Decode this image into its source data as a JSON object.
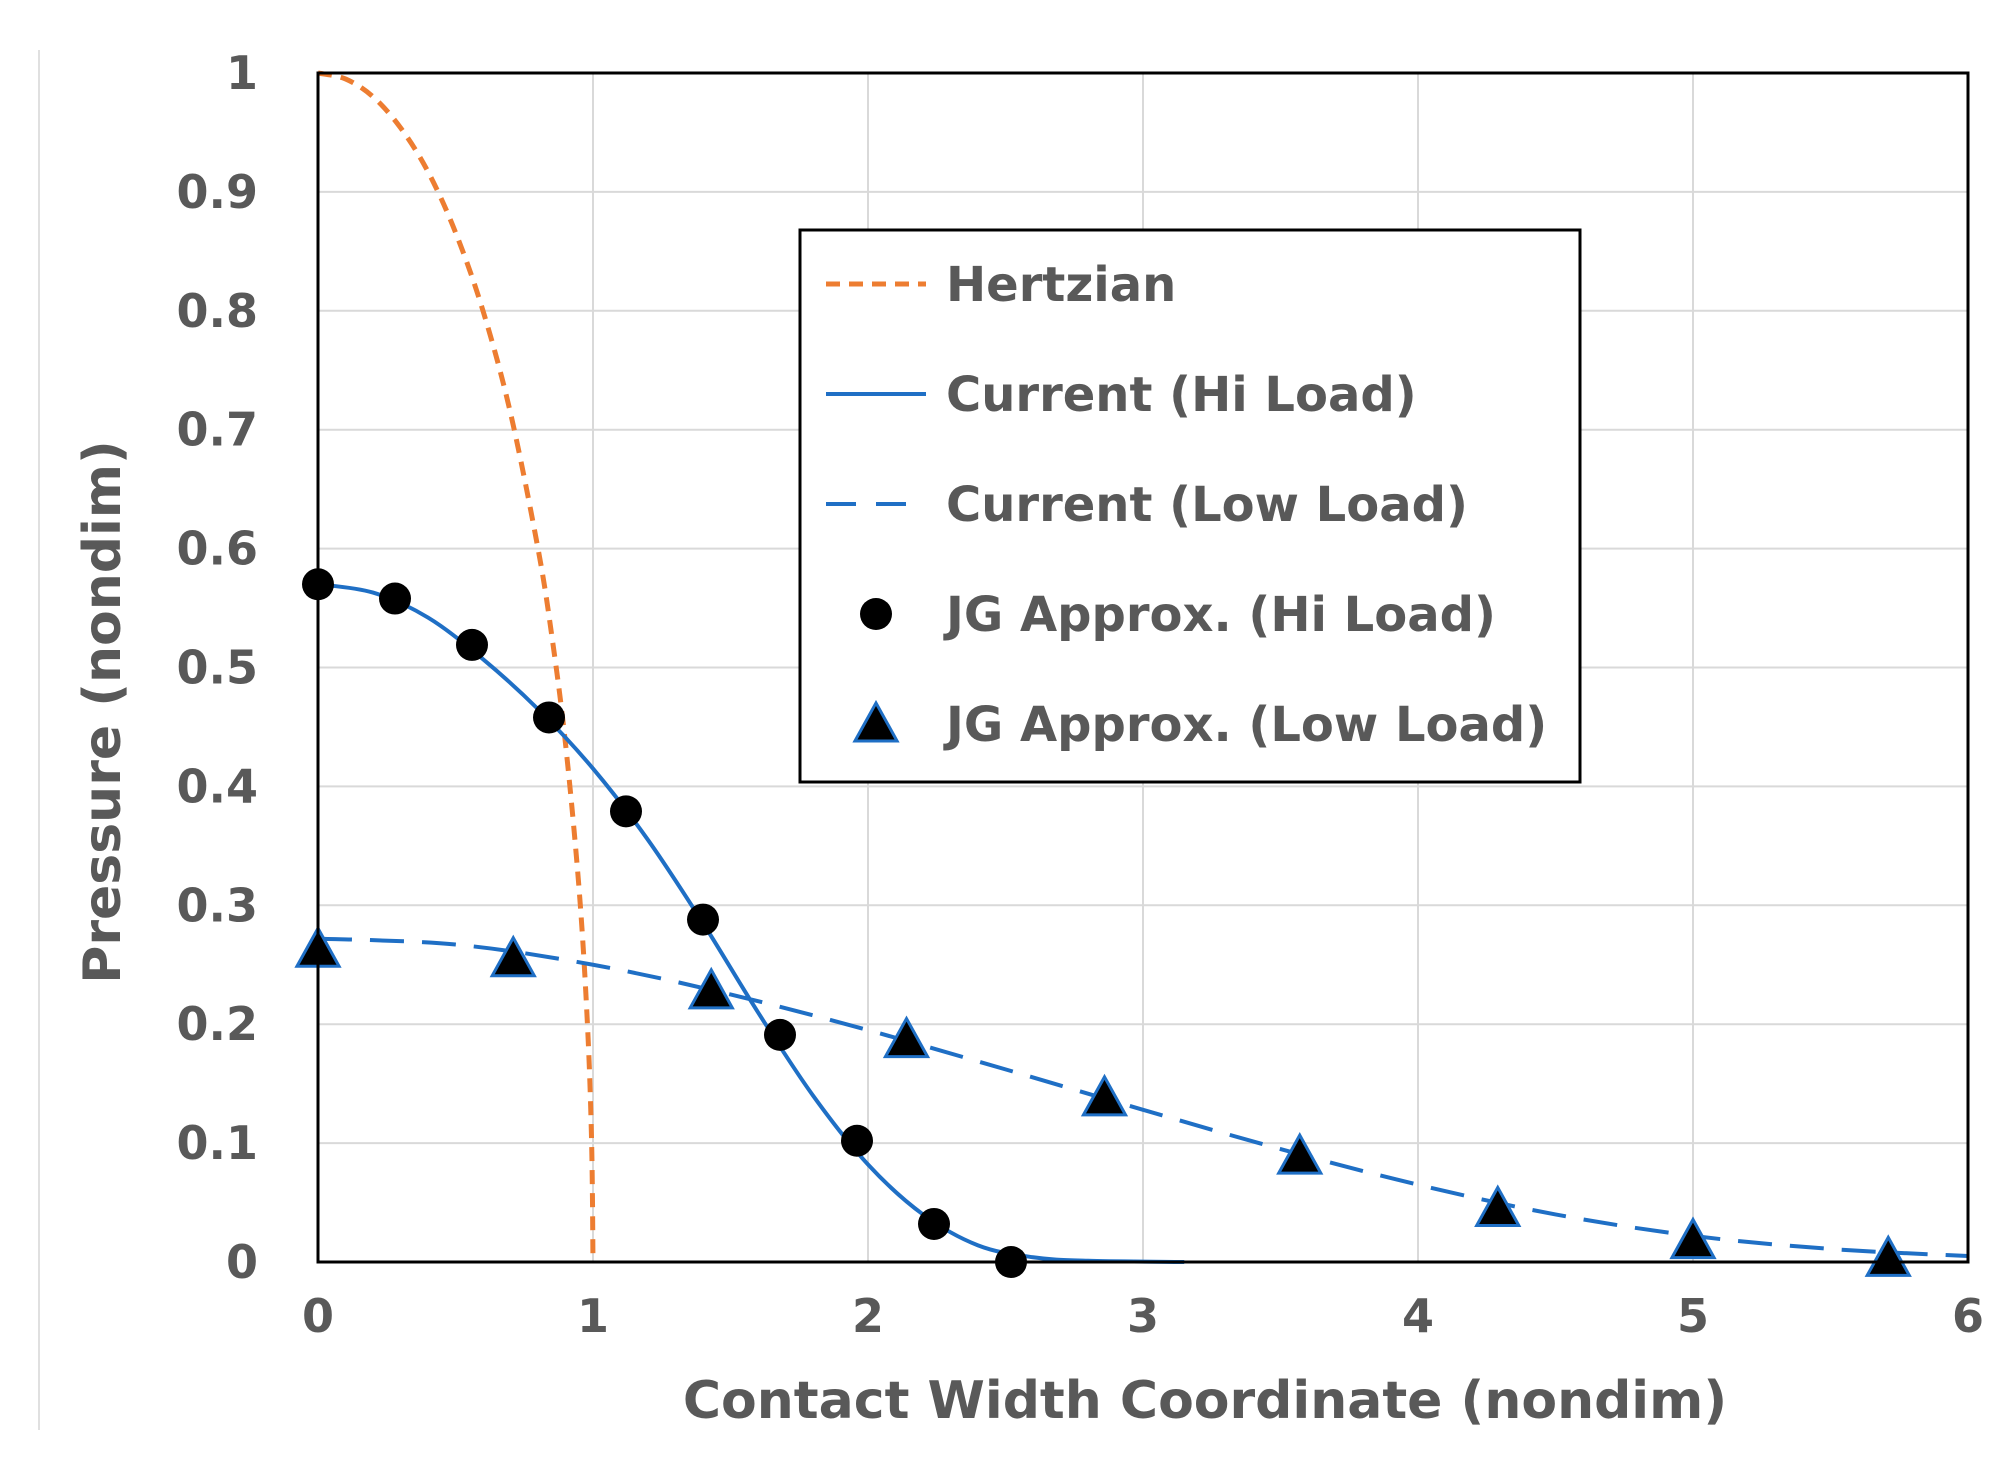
{
  "chart_data": {
    "type": "scatter",
    "xlabel": "Contact Width Coordinate (nondim)",
    "ylabel": "Pressure (nondim)",
    "xlim": [
      0,
      6
    ],
    "ylim": [
      0,
      1
    ],
    "x_ticks": [
      "0",
      "1",
      "2",
      "3",
      "4",
      "5",
      "6"
    ],
    "y_ticks": [
      "0",
      "0.1",
      "0.2",
      "0.3",
      "0.4",
      "0.5",
      "0.6",
      "0.7",
      "0.8",
      "0.9",
      "1"
    ],
    "grid": true,
    "legend_position": "top-center",
    "colors": {
      "hertzian": "#ED7D31",
      "current": "#1F6FC5",
      "markers": "#000000",
      "axis_text": "#595959",
      "grid": "#D9D9D9"
    },
    "series": [
      {
        "name": "Hertzian",
        "style": "dashed-short",
        "kind": "line",
        "x": [
          0,
          0.1,
          0.2,
          0.3,
          0.4,
          0.5,
          0.6,
          0.7,
          0.8,
          0.85,
          0.9,
          0.95,
          0.98,
          0.995,
          1.0
        ],
        "y": [
          1.0,
          0.995,
          0.98,
          0.954,
          0.917,
          0.866,
          0.8,
          0.714,
          0.6,
          0.527,
          0.436,
          0.312,
          0.199,
          0.1,
          0.0
        ]
      },
      {
        "name": "Current (Hi Load)",
        "style": "solid",
        "kind": "line",
        "x": [
          0,
          0.2,
          0.4,
          0.6,
          0.8,
          1.0,
          1.2,
          1.4,
          1.6,
          1.8,
          2.0,
          2.2,
          2.4,
          2.6,
          2.8,
          3.15
        ],
        "y": [
          0.57,
          0.563,
          0.542,
          0.507,
          0.465,
          0.415,
          0.355,
          0.285,
          0.21,
          0.14,
          0.082,
          0.04,
          0.014,
          0.004,
          0.001,
          0.0
        ]
      },
      {
        "name": "Current (Low Load)",
        "style": "dashed-long",
        "kind": "line",
        "x": [
          0,
          0.5,
          1.0,
          1.5,
          2.0,
          2.5,
          3.0,
          3.5,
          4.0,
          4.5,
          5.0,
          5.5,
          6.0
        ],
        "y": [
          0.272,
          0.267,
          0.25,
          0.225,
          0.195,
          0.162,
          0.128,
          0.095,
          0.065,
          0.04,
          0.022,
          0.011,
          0.005
        ]
      },
      {
        "name": "JG Approx. (Hi Load)",
        "kind": "marker-circle",
        "x": [
          0.0,
          0.28,
          0.56,
          0.84,
          1.12,
          1.4,
          1.68,
          1.96,
          2.24,
          2.52
        ],
        "y": [
          0.57,
          0.558,
          0.519,
          0.458,
          0.379,
          0.288,
          0.191,
          0.102,
          0.032,
          0.0
        ]
      },
      {
        "name": "JG Approx. (Low Load)",
        "kind": "marker-triangle",
        "x": [
          0.0,
          0.71,
          1.43,
          2.14,
          2.86,
          3.57,
          4.29,
          5.0,
          5.71
        ],
        "y": [
          0.263,
          0.255,
          0.228,
          0.187,
          0.138,
          0.089,
          0.045,
          0.018,
          0.003
        ]
      }
    ]
  }
}
